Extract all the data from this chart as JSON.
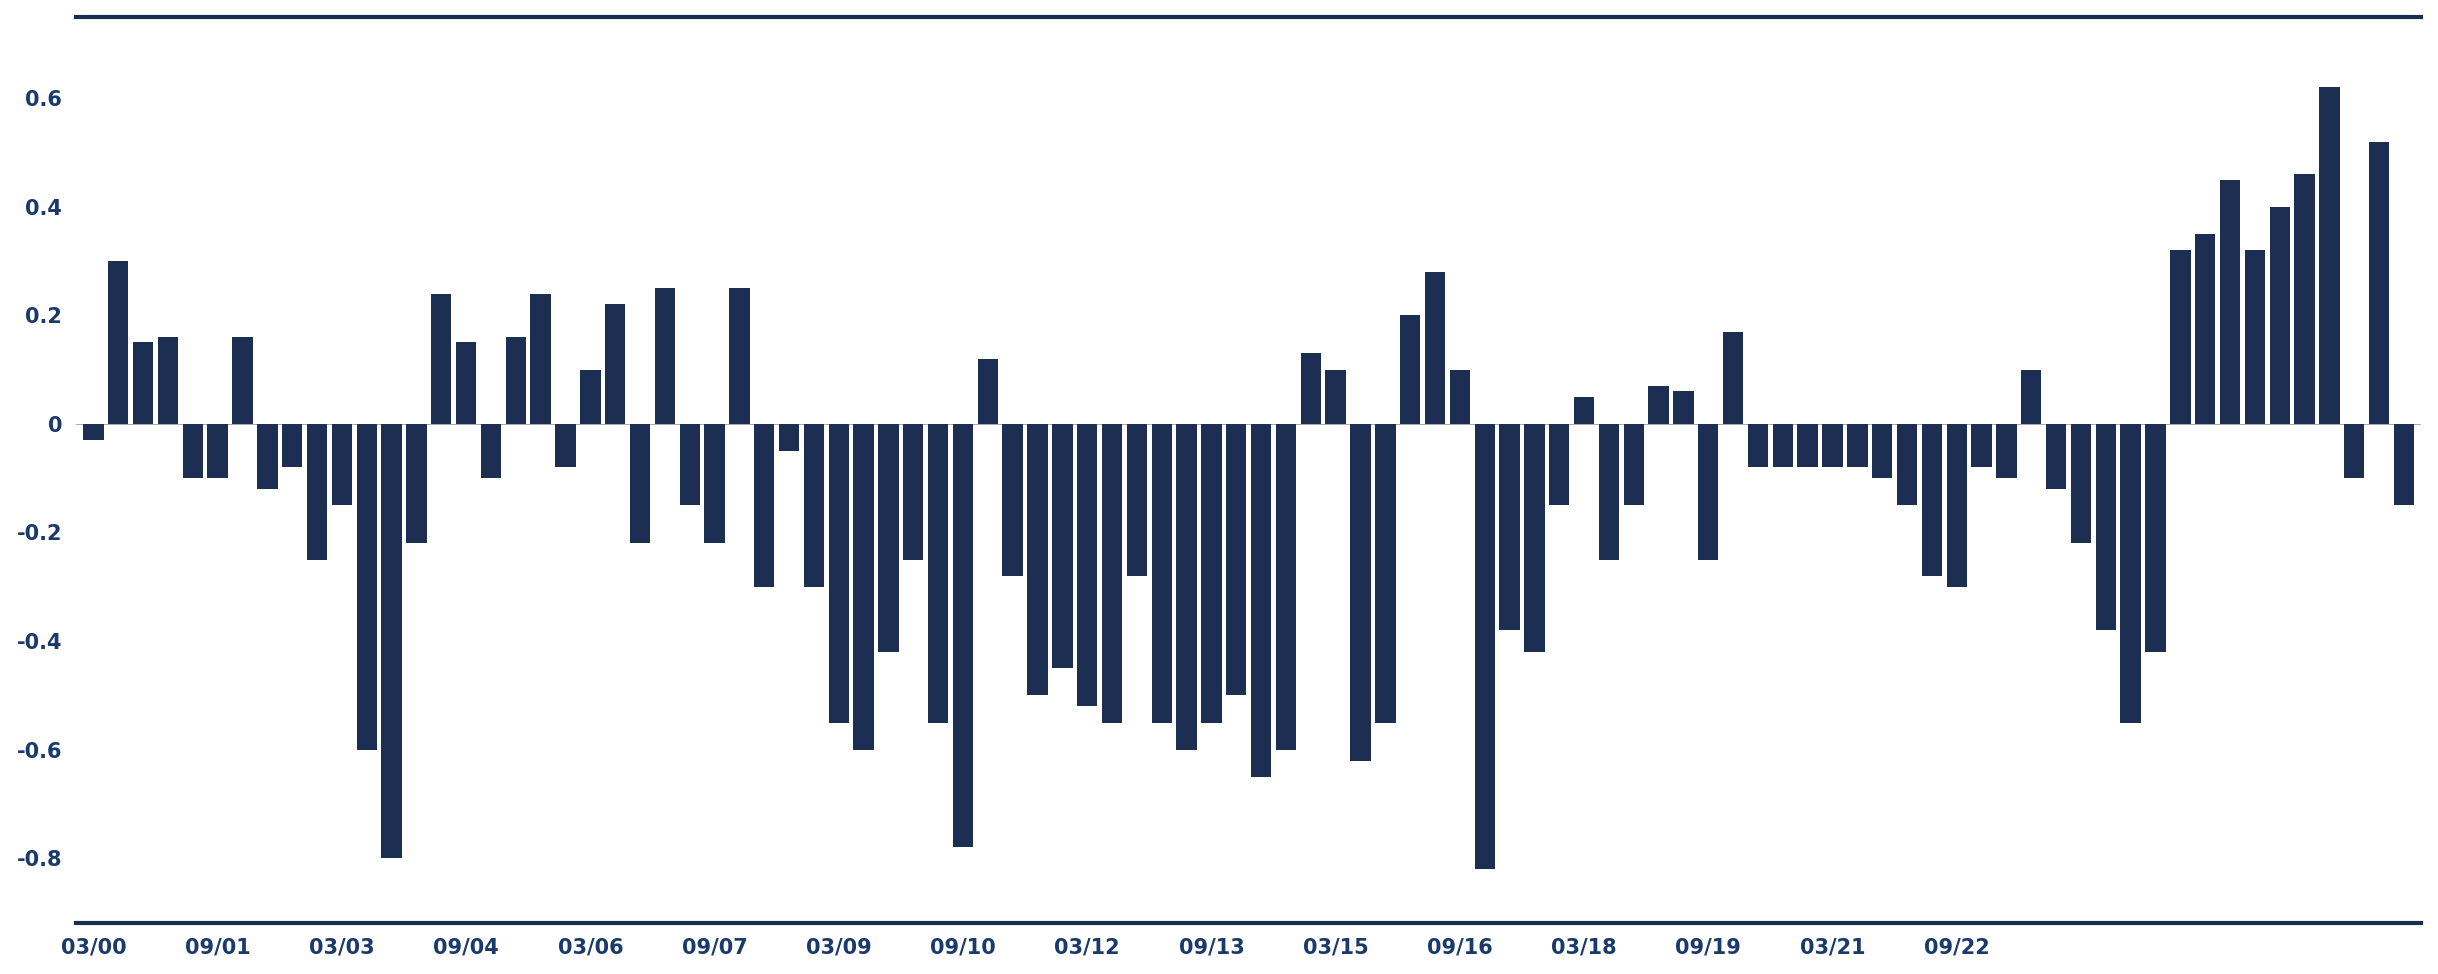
{
  "bar_color": "#1c2f52",
  "background_color": "#ffffff",
  "ylim": [
    -0.92,
    0.75
  ],
  "yticks": [
    -0.8,
    -0.6,
    -0.4,
    -0.2,
    0,
    0.2,
    0.4,
    0.6
  ],
  "tick_color": "#1a3a6b",
  "spine_color": "#1a2e52",
  "values": [
    -0.03,
    0.3,
    0.15,
    0.16,
    -0.1,
    -0.1,
    0.16,
    -0.12,
    -0.08,
    -0.25,
    -0.15,
    -0.6,
    -0.8,
    -0.22,
    0.24,
    0.15,
    -0.1,
    0.16,
    0.24,
    -0.08,
    0.1,
    0.22,
    -0.22,
    0.25,
    -0.15,
    -0.22,
    0.25,
    -0.3,
    -0.05,
    -0.3,
    -0.55,
    -0.6,
    -0.42,
    -0.25,
    -0.55,
    -0.78,
    0.12,
    -0.28,
    -0.5,
    -0.45,
    -0.52,
    -0.55,
    -0.28,
    -0.55,
    -0.6,
    -0.55,
    -0.5,
    -0.65,
    -0.6,
    0.13,
    0.1,
    -0.62,
    -0.55,
    0.2,
    0.28,
    0.1,
    -0.82,
    -0.38,
    -0.42,
    -0.15,
    0.05,
    -0.25,
    -0.15,
    0.07,
    0.06,
    -0.25,
    0.17,
    -0.08,
    -0.08,
    -0.08,
    -0.08,
    -0.08,
    -0.1,
    -0.15,
    -0.28,
    -0.3,
    -0.08,
    -0.1,
    0.1,
    -0.12,
    -0.22,
    -0.38,
    -0.55,
    -0.42,
    0.32,
    0.35,
    0.45,
    0.32,
    0.4,
    0.46,
    0.62,
    -0.1,
    0.52,
    -0.15
  ],
  "xtick_labels": [
    "03/00",
    "09/01",
    "03/03",
    "09/04",
    "03/06",
    "09/07",
    "03/09",
    "09/10",
    "03/12",
    "09/13",
    "03/15",
    "09/16",
    "03/18",
    "09/19",
    "03/21",
    "09/22"
  ],
  "xtick_positions": [
    0,
    5,
    10,
    15,
    20,
    25,
    30,
    35,
    40,
    45,
    50,
    55,
    60,
    65,
    70,
    75
  ]
}
